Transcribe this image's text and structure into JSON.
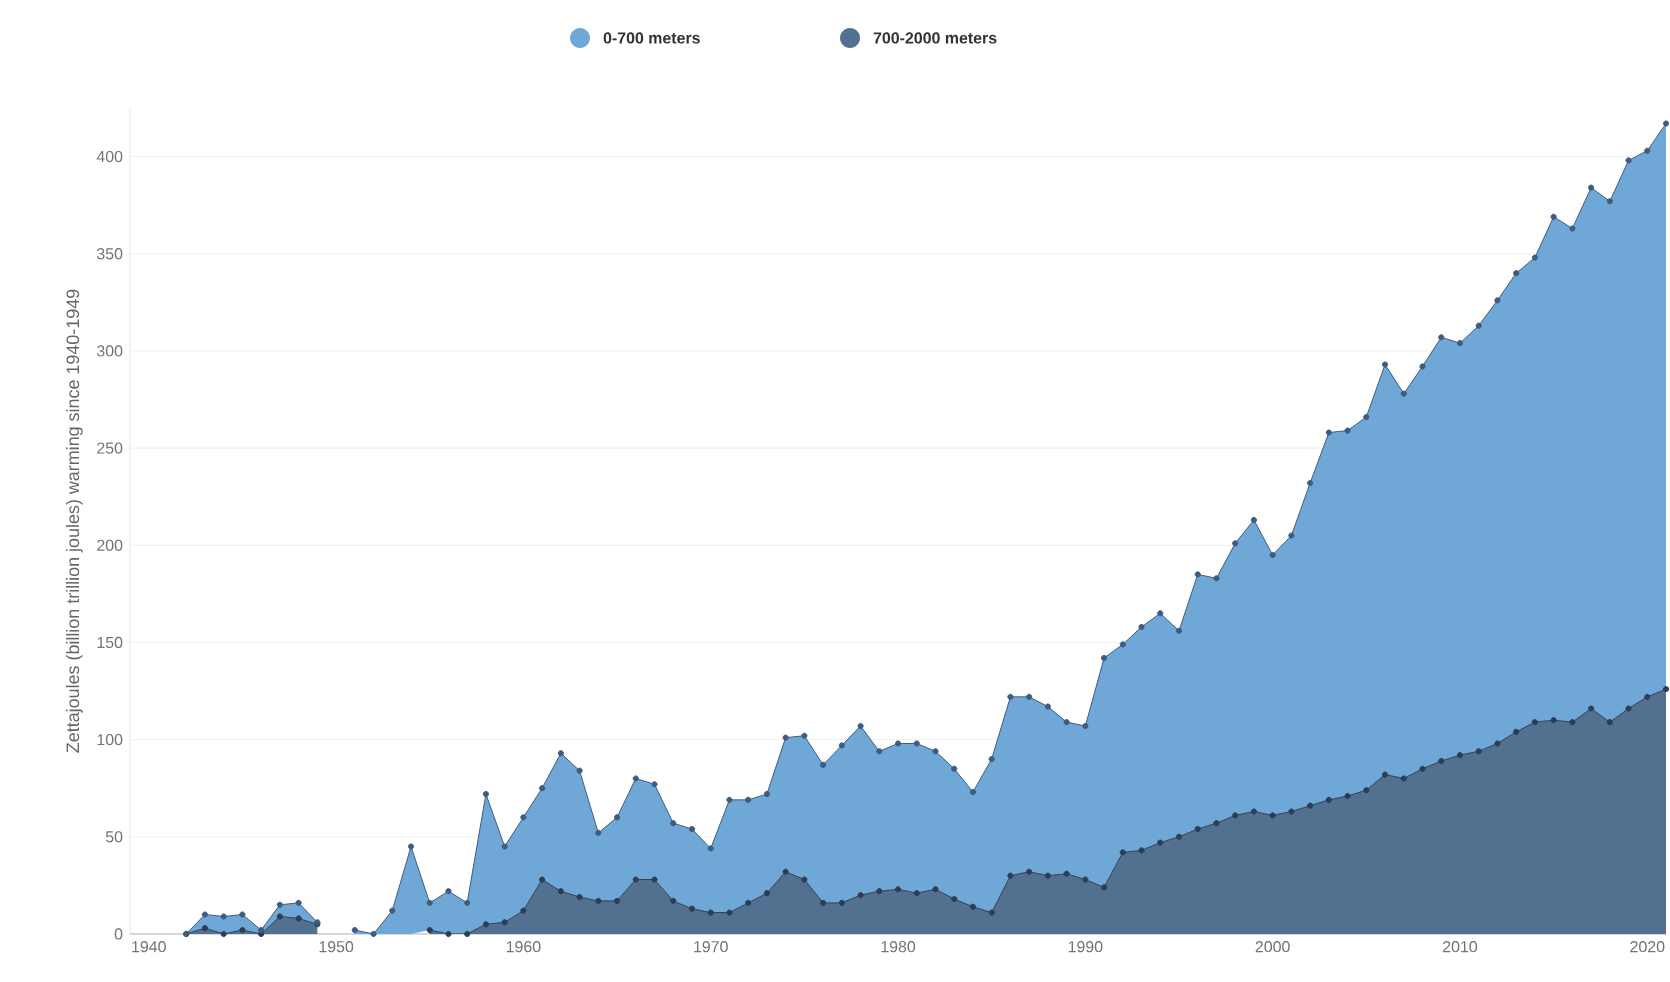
{
  "chart_data": {
    "type": "area",
    "stacked": true,
    "ylabel": "Zettajoules (billion trillion joules) warming since 1940-1949",
    "x": [
      1942,
      1943,
      1944,
      1945,
      1946,
      1947,
      1948,
      1949,
      1950,
      1951,
      1952,
      1953,
      1954,
      1955,
      1956,
      1957,
      1958,
      1959,
      1960,
      1961,
      1962,
      1963,
      1964,
      1965,
      1966,
      1967,
      1968,
      1969,
      1970,
      1971,
      1972,
      1973,
      1974,
      1975,
      1976,
      1977,
      1978,
      1979,
      1980,
      1981,
      1982,
      1983,
      1984,
      1985,
      1986,
      1987,
      1988,
      1989,
      1990,
      1991,
      1992,
      1993,
      1994,
      1995,
      1996,
      1997,
      1998,
      1999,
      2000,
      2001,
      2002,
      2003,
      2004,
      2005,
      2006,
      2007,
      2008,
      2009,
      2010,
      2011,
      2012,
      2013,
      2014,
      2015,
      2016,
      2017,
      2018,
      2019,
      2020,
      2021
    ],
    "series": [
      {
        "name": "700-2000 meters",
        "color": "#52708f",
        "values": [
          0,
          3,
          0,
          2,
          0,
          9,
          8,
          5,
          null,
          null,
          null,
          null,
          null,
          2,
          0,
          0,
          5,
          6,
          12,
          28,
          22,
          19,
          17,
          17,
          28,
          28,
          17,
          13,
          11,
          11,
          16,
          21,
          32,
          28,
          16,
          16,
          20,
          22,
          23,
          21,
          23,
          18,
          14,
          11,
          30,
          32,
          30,
          31,
          28,
          24,
          42,
          43,
          47,
          50,
          54,
          57,
          61,
          63,
          61,
          63,
          66,
          69,
          71,
          74,
          82,
          80,
          85,
          89,
          92,
          94,
          98,
          104,
          109,
          110,
          109,
          116,
          109,
          116,
          122,
          126
        ]
      },
      {
        "name": "0-700 meters",
        "color": "#6fa8d6",
        "values": [
          0,
          7,
          9,
          8,
          2,
          6,
          8,
          1,
          null,
          2,
          0,
          12,
          45,
          14,
          22,
          16,
          67,
          39,
          48,
          47,
          71,
          65,
          35,
          43,
          52,
          49,
          40,
          41,
          33,
          58,
          53,
          51,
          69,
          74,
          71,
          81,
          87,
          72,
          75,
          77,
          71,
          67,
          59,
          79,
          92,
          90,
          87,
          78,
          79,
          118,
          107,
          115,
          118,
          106,
          131,
          126,
          140,
          150,
          134,
          142,
          166,
          189,
          188,
          192,
          211,
          198,
          207,
          218,
          212,
          219,
          228,
          236,
          239,
          259,
          254,
          268,
          268,
          282,
          281,
          291
        ]
      }
    ],
    "xlim": [
      1939,
      2021
    ],
    "ylim": [
      0,
      425
    ],
    "xticks": [
      1940,
      1950,
      1960,
      1970,
      1980,
      1990,
      2000,
      2010,
      2020
    ],
    "yticks": [
      0,
      50,
      100,
      150,
      200,
      250,
      300,
      350,
      400
    ],
    "grid": "y",
    "legend": "top",
    "marker": "circle"
  }
}
